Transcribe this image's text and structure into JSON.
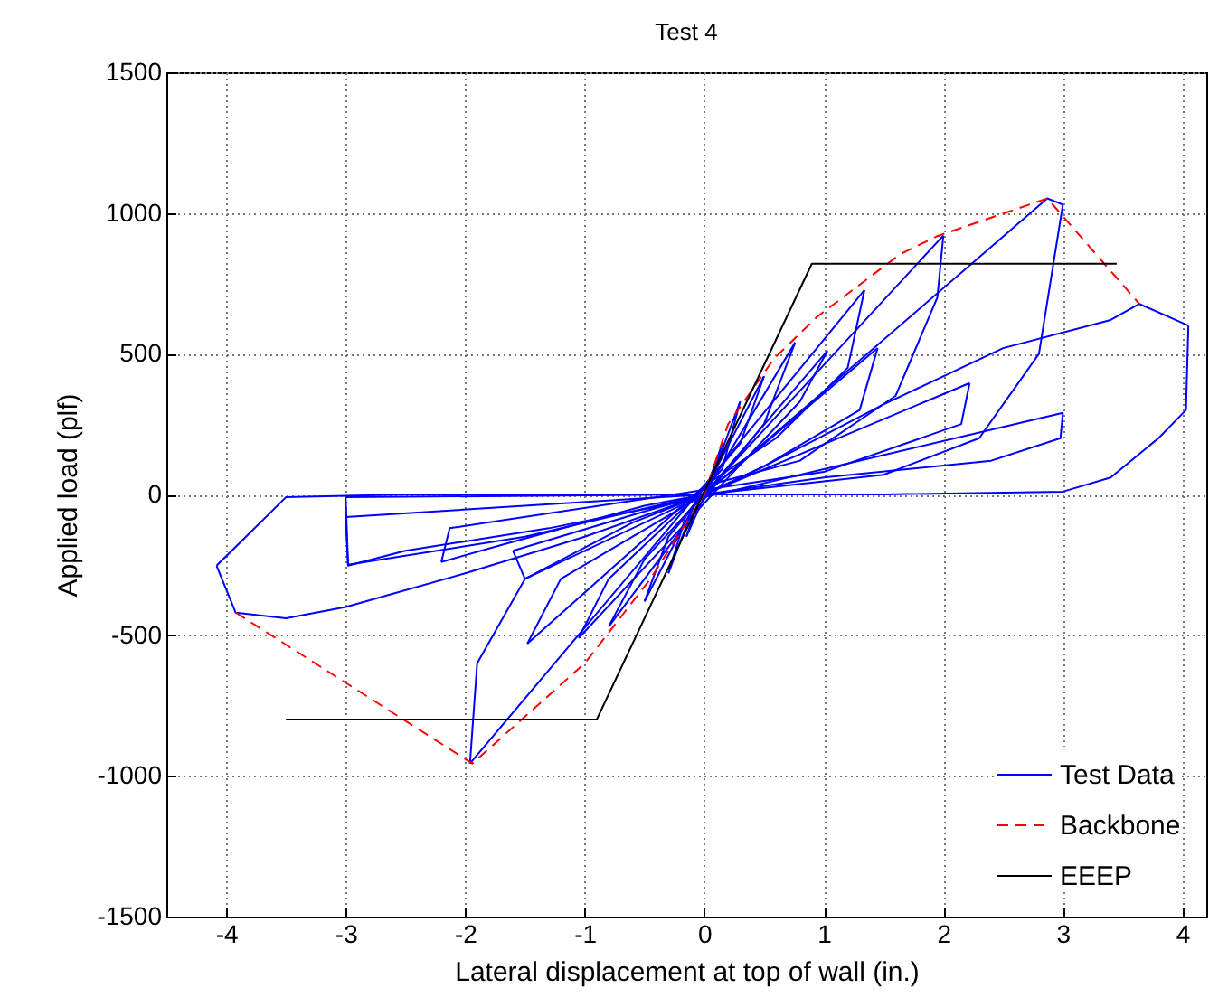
{
  "chart_data": {
    "type": "line",
    "title": "Test 4",
    "xlabel": "Lateral displacement at top of wall (in.)",
    "ylabel": "Applied load (plf)",
    "xlim": [
      -4.5,
      4.2
    ],
    "xticks": [
      -4,
      -3,
      -2,
      -1,
      0,
      1,
      2,
      3,
      4
    ],
    "ylim": [
      -1500,
      1500
    ],
    "yticks": [
      -1500,
      -1000,
      -500,
      0,
      500,
      1000,
      1500
    ],
    "grid": true,
    "legend": "bottom right",
    "marker": "none",
    "series": [
      {
        "name": "Test Data",
        "color": "#0000ff",
        "line_style": "solid",
        "x": [
          0,
          0.15
        ],
        "values": [
          0,
          180
        ]
      },
      {
        "color": "#0000ff",
        "line_style": "solid",
        "x": [
          0.15,
          0.05,
          -0.15
        ],
        "values": [
          180,
          40,
          -150
        ]
      },
      {
        "color": "#0000ff",
        "line_style": "solid",
        "x": [
          -0.15,
          -0.05,
          0.02,
          0.3
        ],
        "values": [
          -150,
          -30,
          10,
          330
        ]
      },
      {
        "color": "#0000ff",
        "line_style": "solid",
        "x": [
          0.3,
          0.15,
          -0.05,
          -0.3
        ],
        "values": [
          330,
          90,
          0,
          -280
        ]
      },
      {
        "color": "#0000ff",
        "line_style": "solid",
        "x": [
          -0.3,
          -0.15,
          0,
          0.5
        ],
        "values": [
          -280,
          -70,
          10,
          420
        ]
      },
      {
        "color": "#0000ff",
        "line_style": "solid",
        "x": [
          0.5,
          0.3,
          0,
          -0.5
        ],
        "values": [
          420,
          180,
          30,
          -380
        ]
      },
      {
        "color": "#0000ff",
        "line_style": "solid",
        "x": [
          -0.5,
          -0.3,
          0,
          0.76
        ],
        "values": [
          -380,
          -150,
          0,
          540
        ]
      },
      {
        "color": "#0000ff",
        "line_style": "solid",
        "x": [
          0.76,
          0.5,
          0.1,
          -0.8
        ],
        "values": [
          540,
          250,
          40,
          -470
        ]
      },
      {
        "color": "#0000ff",
        "line_style": "solid",
        "x": [
          -0.8,
          -0.5,
          0,
          1.03
        ],
        "values": [
          -470,
          -230,
          0,
          510
        ]
      },
      {
        "color": "#0000ff",
        "line_style": "solid",
        "x": [
          1.03,
          0.8,
          0.2,
          -1.05
        ],
        "values": [
          510,
          330,
          60,
          -510
        ]
      },
      {
        "color": "#0000ff",
        "line_style": "solid",
        "x": [
          -1.05,
          -0.8,
          -0.1,
          1.34
        ],
        "values": [
          -510,
          -300,
          -20,
          726
        ]
      },
      {
        "color": "#0000ff",
        "line_style": "solid",
        "x": [
          1.34,
          1.2,
          0.6,
          0,
          -1.48
        ],
        "values": [
          726,
          450,
          200,
          30,
          -530
        ]
      },
      {
        "color": "#0000ff",
        "line_style": "solid",
        "x": [
          -1.48,
          -1.2,
          -0.4,
          0,
          1.45
        ],
        "values": [
          -530,
          -300,
          -100,
          0,
          520
        ]
      },
      {
        "color": "#0000ff",
        "line_style": "solid",
        "x": [
          1.45,
          1.3,
          0.5,
          -1.5,
          -1.6
        ],
        "values": [
          520,
          300,
          100,
          -300,
          -200
        ]
      },
      {
        "color": "#0000ff",
        "line_style": "solid",
        "x": [
          -1.6,
          -0.5,
          0,
          2.0
        ],
        "values": [
          -200,
          -60,
          0,
          920
        ]
      },
      {
        "color": "#0000ff",
        "line_style": "solid",
        "x": [
          2.0,
          1.95,
          1.6,
          0.8,
          0,
          -1.96
        ],
        "values": [
          920,
          700,
          350,
          120,
          30,
          -956
        ]
      },
      {
        "color": "#0000ff",
        "line_style": "solid",
        "x": [
          -1.96,
          -1.9,
          -1.5,
          -0.6,
          0,
          2.22
        ],
        "values": [
          -956,
          -600,
          -300,
          -100,
          0,
          396
        ]
      },
      {
        "color": "#0000ff",
        "line_style": "solid",
        "x": [
          2.22,
          2.15,
          1.0,
          -2.13,
          -2.2
        ],
        "values": [
          396,
          250,
          80,
          -120,
          -240
        ]
      },
      {
        "color": "#0000ff",
        "line_style": "solid",
        "x": [
          -2.2,
          -1.7,
          -0.5,
          0,
          2.87,
          3.0
        ],
        "values": [
          -240,
          -180,
          -40,
          0,
          1052,
          1030
        ]
      },
      {
        "color": "#0000ff",
        "line_style": "solid",
        "x": [
          3.0,
          2.8,
          2.3,
          1.5,
          0,
          -3.0
        ],
        "values": [
          1030,
          500,
          200,
          70,
          0,
          -80
        ]
      },
      {
        "color": "#0000ff",
        "line_style": "solid",
        "x": [
          -3.0,
          -2.98,
          -2.5,
          -1.3,
          0,
          3.0
        ],
        "values": [
          -80,
          -253,
          -200,
          -120,
          -10,
          290
        ]
      },
      {
        "color": "#0000ff",
        "line_style": "solid",
        "x": [
          3.0,
          2.98,
          2.4,
          1.0,
          0,
          -3.0
        ],
        "values": [
          290,
          200,
          120,
          60,
          0,
          -10
        ]
      },
      {
        "color": "#0000ff",
        "line_style": "solid",
        "x": [
          -3.0,
          -2.98,
          -1.5,
          0,
          0.5,
          1.5,
          2.5,
          3.4,
          3.64,
          4.05
        ],
        "values": [
          -10,
          -250,
          -150,
          0,
          100,
          320,
          520,
          620,
          677,
          600
        ]
      },
      {
        "color": "#0000ff",
        "line_style": "solid",
        "x": [
          4.05,
          4.03,
          3.8,
          3.4,
          3.0,
          1.5,
          0,
          -1.0,
          -2.5,
          -3.5,
          -4.08
        ],
        "values": [
          600,
          300,
          200,
          60,
          10,
          0,
          0,
          0,
          0,
          -10,
          -253
        ]
      },
      {
        "color": "#0000ff",
        "line_style": "solid",
        "x": [
          -4.08,
          -3.92,
          -3.5,
          -3.0,
          -2.0,
          -1.0,
          0
        ],
        "values": [
          -253,
          -420,
          -440,
          -400,
          -280,
          -150,
          0
        ]
      },
      {
        "name": "Backbone",
        "color": "#ff0000",
        "line_style": "dashed",
        "x": [
          -3.92,
          -1.94,
          -1.0,
          -0.45,
          0,
          0.2,
          0.58,
          0.94,
          1.64,
          1.95,
          2.87,
          3.64
        ],
        "values": [
          -420,
          -956,
          -600,
          -300,
          0,
          250,
          481,
          630,
          854,
          918,
          1052,
          677
        ]
      },
      {
        "name": "EEEP",
        "color": "#000000",
        "line_style": "solid",
        "x": [
          -3.5,
          -0.9,
          0.9,
          3.45
        ],
        "values": [
          -800,
          -800,
          820,
          820
        ]
      }
    ]
  }
}
